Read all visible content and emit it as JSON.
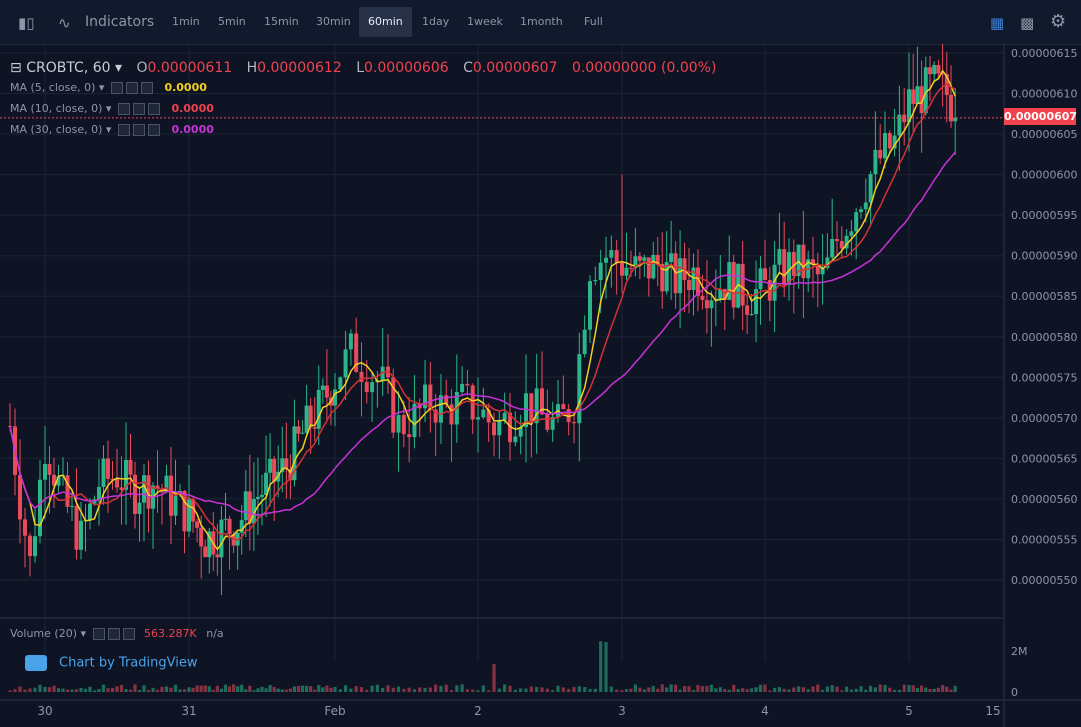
{
  "toolbar": {
    "indicators_label": "Indicators",
    "timeframes": [
      "1min",
      "5min",
      "15min",
      "30min",
      "60min",
      "1day",
      "1week",
      "1month",
      "Full"
    ],
    "active_timeframe": "60min"
  },
  "legend": {
    "symbol": "CROBTC, 60",
    "open_label": "O",
    "open": "0.00000611",
    "high_label": "H",
    "high": "0.00000612",
    "low_label": "L",
    "low": "0.00000606",
    "close_label": "C",
    "close": "0.00000607",
    "change": "0.00000000 (0.00%)"
  },
  "ma_studies": [
    {
      "label": "MA (5, close, 0)",
      "value": "0.0000",
      "color": "#f2d022"
    },
    {
      "label": "MA (10, close, 0)",
      "value": "0.0000",
      "color": "#f0424f"
    },
    {
      "label": "MA (30, close, 0)",
      "value": "0.0000",
      "color": "#c832d8"
    }
  ],
  "volume_study": {
    "label": "Volume (20)",
    "value": "563.287K",
    "na": "n/a"
  },
  "branding": "Chart by TradingView",
  "current_price": "0.00000607",
  "colors": {
    "up": "#2bb58a",
    "down": "#ea4b5b",
    "ma5": "#f2d022",
    "ma10": "#d43234",
    "ma30": "#c832d8",
    "background": "#0e1424",
    "grid": "#1c2434"
  },
  "chart_data": {
    "type": "candlestick",
    "x_ticks": [
      "30",
      "31",
      "Feb",
      "2",
      "3",
      "4",
      "5",
      "15"
    ],
    "y_ticks": [
      "0.00000615",
      "0.00000610",
      "0.00000605",
      "0.00000600",
      "0.00000595",
      "0.00000590",
      "0.00000585",
      "0.00000580",
      "0.00000575",
      "0.00000570",
      "0.00000565",
      "0.00000560",
      "0.00000555",
      "0.00000550"
    ],
    "ylim": [
      5.47e-06,
      6.16e-06
    ],
    "volume_ticks": [
      "2M",
      "0"
    ],
    "close_series": [
      {
        "day": "30",
        "close": [
          5.67,
          5.6,
          5.55,
          5.62,
          5.63,
          5.61,
          5.62,
          5.6
        ]
      },
      {
        "day": "31",
        "close": [
          5.58,
          5.55,
          5.56,
          5.57,
          5.6,
          5.62,
          5.64,
          5.68,
          5.71
        ]
      },
      {
        "day": "Feb",
        "close": [
          5.75,
          5.78,
          5.76,
          5.74,
          5.69,
          5.7,
          5.72,
          5.71,
          5.72
        ]
      },
      {
        "day": "2",
        "close": [
          5.71,
          5.69,
          5.7,
          5.72,
          5.7,
          5.69,
          5.72,
          5.89,
          5.9
        ]
      },
      {
        "day": "3",
        "close": [
          5.89,
          5.88,
          5.89,
          5.87,
          5.88,
          5.86,
          5.87,
          5.85
        ]
      },
      {
        "day": "4",
        "close": [
          5.86,
          5.88,
          5.89,
          5.88,
          5.87,
          5.92,
          5.95,
          5.99,
          6.02,
          6.04
        ]
      },
      {
        "day": "5",
        "close": [
          6.09,
          6.1,
          6.11,
          6.1,
          6.07
        ]
      }
    ]
  }
}
